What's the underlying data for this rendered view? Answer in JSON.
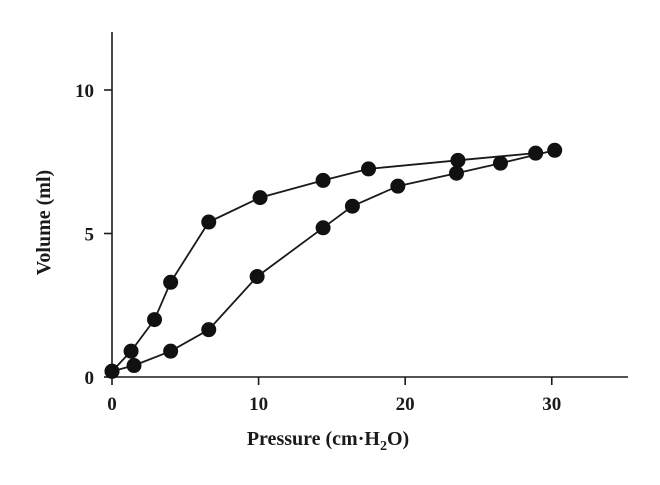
{
  "chart_data": {
    "type": "line",
    "title": "",
    "xlabel": "Pressure (cm·H2O)",
    "xlabel_parts": {
      "main": "Pressure (cm·H",
      "sub": "2",
      "tail": "O)"
    },
    "ylabel": "Volume (ml)",
    "xlim": [
      0,
      35
    ],
    "ylim": [
      0,
      12
    ],
    "xticks": [
      0,
      10,
      20,
      30
    ],
    "yticks": [
      0,
      5,
      10
    ],
    "grid": false,
    "legend": "none",
    "marker_color": "#111111",
    "line_color": "#1a1a1a",
    "series": [
      {
        "x": [
          0,
          1.3,
          2.9,
          4.0,
          6.6,
          10.1,
          14.4,
          17.5,
          23.6,
          28.9
        ],
        "y": [
          0.2,
          0.9,
          2.0,
          3.3,
          5.4,
          6.25,
          6.85,
          7.25,
          7.55,
          7.8
        ]
      },
      {
        "x": [
          0,
          1.5,
          4.0,
          6.6,
          9.9,
          14.4,
          16.4,
          19.5,
          23.5,
          26.5,
          30.2
        ],
        "y": [
          0.2,
          0.4,
          0.9,
          1.65,
          3.5,
          5.2,
          5.95,
          6.65,
          7.1,
          7.45,
          7.9
        ]
      }
    ]
  }
}
